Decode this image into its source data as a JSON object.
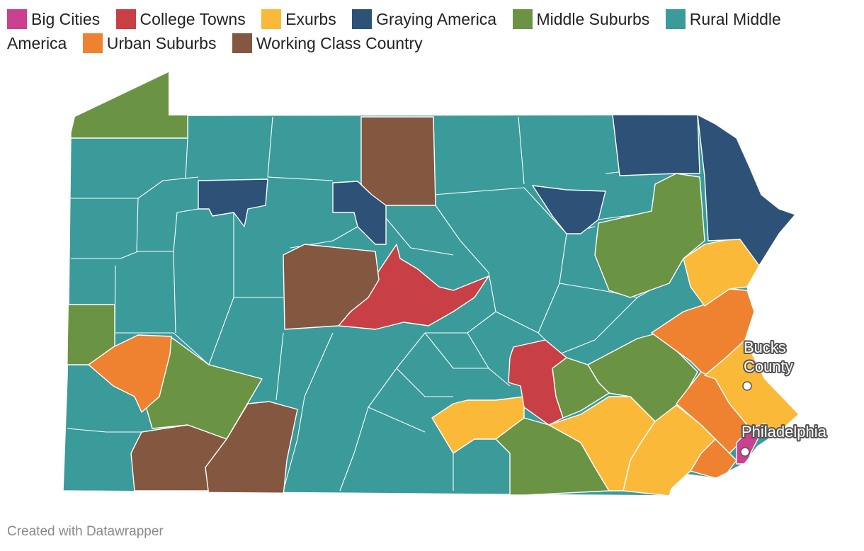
{
  "legend": [
    {
      "label": "Big Cities",
      "color": "#c9418f"
    },
    {
      "label": "College Towns",
      "color": "#c84046"
    },
    {
      "label": "Exurbs",
      "color": "#fbb93a"
    },
    {
      "label": "Graying America",
      "color": "#2d5177"
    },
    {
      "label": "Middle Suburbs",
      "color": "#6b9344"
    },
    {
      "label": "Rural Middle America",
      "label_line1": "Rural Middle",
      "label_line2": "America",
      "color": "#3a9b9a"
    },
    {
      "label": "Urban Suburbs",
      "color": "#ef8231"
    },
    {
      "label": "Working Class Country",
      "color": "#845740"
    }
  ],
  "annotations": {
    "bucks": {
      "line1": "Bucks",
      "line2": "County"
    },
    "philadelphia": "Philadelphia"
  },
  "credit": "Created with Datawrapper"
}
